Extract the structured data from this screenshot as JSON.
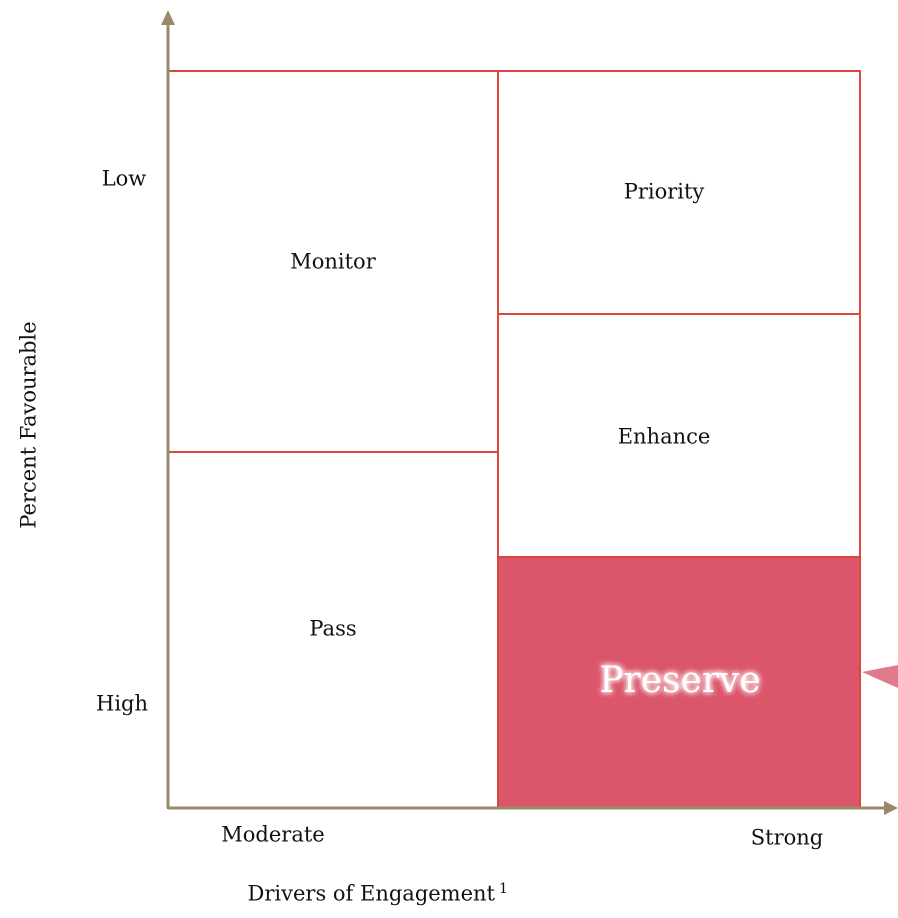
{
  "diagram": {
    "y_axis": {
      "label": "Percent Favourable",
      "low": "Low",
      "high": "High"
    },
    "x_axis": {
      "label": "Drivers of Engagement",
      "superscript": "1",
      "moderate": "Moderate",
      "strong": "Strong"
    },
    "quadrants": [
      {
        "label": "Monitor"
      },
      {
        "label": "Pass"
      },
      {
        "label": "Priority"
      },
      {
        "label": "Enhance"
      },
      {
        "label": "Preserve"
      }
    ]
  }
}
